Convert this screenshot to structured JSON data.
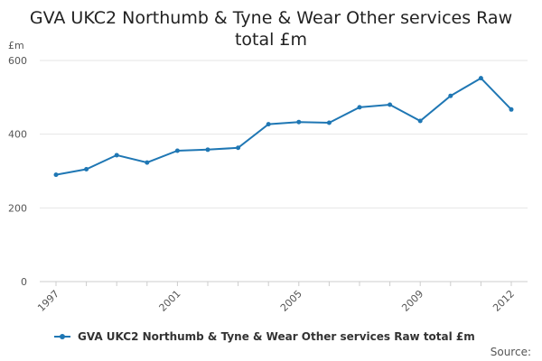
{
  "chart_data": {
    "type": "line",
    "title": "GVA UKC2 Northumb & Tyne & Wear Other services Raw total £m",
    "ylabel": "£m",
    "xlabel": "",
    "ylim": [
      0,
      600
    ],
    "yticks": [
      0,
      200,
      400,
      600
    ],
    "xtick_labels": [
      "1997",
      "2001",
      "2005",
      "2009",
      "2012"
    ],
    "x": [
      1997,
      1998,
      1999,
      2000,
      2001,
      2002,
      2003,
      2004,
      2005,
      2006,
      2007,
      2008,
      2009,
      2010,
      2011,
      2012
    ],
    "series": [
      {
        "name": "GVA UKC2 Northumb & Tyne & Wear Other services Raw total £m",
        "color": "#1f77b4",
        "values": [
          290,
          305,
          343,
          323,
          355,
          358,
          363,
          427,
          433,
          431,
          473,
          480,
          436,
          504,
          552,
          467
        ]
      }
    ],
    "grid": true,
    "legend_position": "bottom"
  },
  "footer": {
    "source_label": "Source:"
  }
}
